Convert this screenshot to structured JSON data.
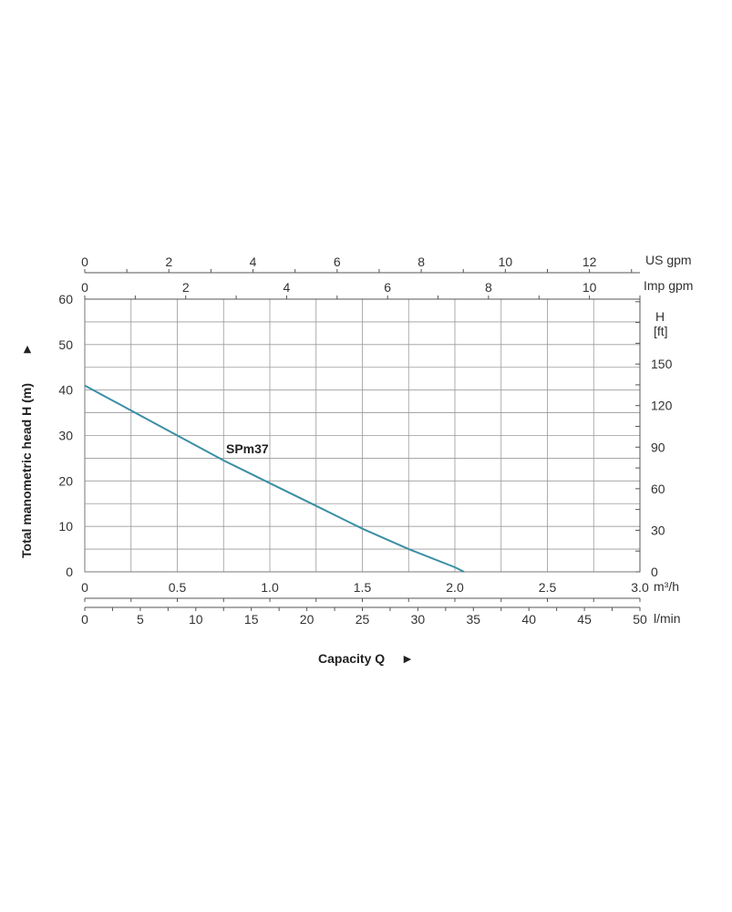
{
  "chart_data": {
    "type": "line",
    "xlabel": "Capacity Q",
    "xlabel_arrow": "►",
    "ylabel": "Total manometric head H (m)",
    "ylabel_arrow": "►",
    "xlim": [
      0,
      3.0
    ],
    "ylim": [
      0,
      60
    ],
    "grid": true,
    "series": [
      {
        "name": "SPm37",
        "color": "#3b8ea5",
        "x": [
          0,
          0.25,
          0.5,
          0.75,
          1.0,
          1.25,
          1.5,
          1.75,
          2.0,
          2.05
        ],
        "y": [
          41,
          35.5,
          30,
          24.5,
          19.5,
          14.5,
          9.5,
          5,
          1,
          0
        ]
      }
    ],
    "axes": {
      "x_m3h": {
        "unit": "m³/h",
        "ticks": [
          0,
          0.5,
          1.0,
          1.5,
          2.0,
          2.5,
          3.0
        ],
        "labels": [
          "0",
          "0.5",
          "1.0",
          "1.5",
          "2.0",
          "2.5",
          "3.0"
        ]
      },
      "x_lmin": {
        "unit": "l/min",
        "ticks": [
          0,
          5,
          10,
          15,
          20,
          25,
          30,
          35,
          40,
          45,
          50
        ],
        "labels": [
          "0",
          "5",
          "10",
          "15",
          "20",
          "25",
          "30",
          "35",
          "40",
          "45",
          "50"
        ]
      },
      "x_usgpm": {
        "unit": "US gpm",
        "ticks": [
          0,
          2,
          4,
          6,
          8,
          10,
          12
        ],
        "labels": [
          "0",
          "2",
          "4",
          "6",
          "8",
          "10",
          "12"
        ]
      },
      "x_impgpm": {
        "unit": "Imp gpm",
        "ticks": [
          0,
          2,
          4,
          6,
          8,
          10
        ],
        "labels": [
          "0",
          "2",
          "4",
          "6",
          "8",
          "10"
        ]
      },
      "y_m": {
        "ticks": [
          0,
          10,
          20,
          30,
          40,
          50,
          60
        ],
        "labels": [
          "0",
          "10",
          "20",
          "30",
          "40",
          "50",
          "60"
        ]
      },
      "y_ft": {
        "unit_top": "H",
        "unit_bottom": "[ft]",
        "ticks": [
          0,
          30,
          60,
          90,
          120,
          150
        ],
        "labels": [
          "0",
          "30",
          "60",
          "90",
          "120",
          "150"
        ]
      }
    }
  }
}
